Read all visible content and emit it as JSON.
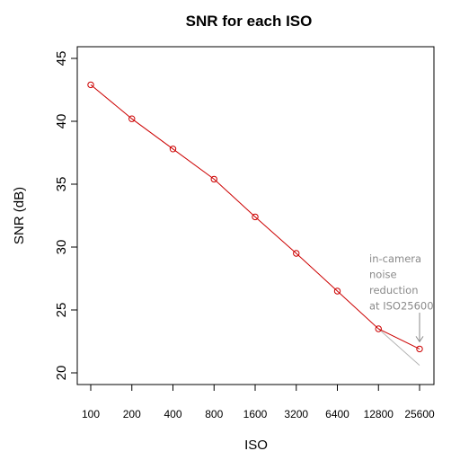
{
  "chart_data": {
    "type": "line",
    "title": "SNR for each ISO",
    "xlabel": "ISO",
    "ylabel": "SNR (dB)",
    "x_scale": "log2",
    "categories": [
      "100",
      "200",
      "400",
      "800",
      "1600",
      "3200",
      "6400",
      "12800",
      "25600"
    ],
    "ylim": [
      20,
      45
    ],
    "yticks": [
      20,
      25,
      30,
      35,
      40,
      45
    ],
    "grid": false,
    "series": [
      {
        "color": "#cc0000",
        "marker": "open-circle",
        "values": [
          42.9,
          40.2,
          37.8,
          35.4,
          32.4,
          29.5,
          26.5,
          23.5,
          21.9
        ]
      },
      {
        "color": "#b4b4b4",
        "x": [
          "12800",
          "25600"
        ],
        "values": [
          23.5,
          20.6
        ]
      }
    ],
    "annotations": [
      {
        "lines": [
          "in-camera",
          "noise",
          "reduction",
          "at ISO25600"
        ],
        "target_category": "25600",
        "target_value": 21.9,
        "color": "#8a8a8a"
      }
    ]
  }
}
